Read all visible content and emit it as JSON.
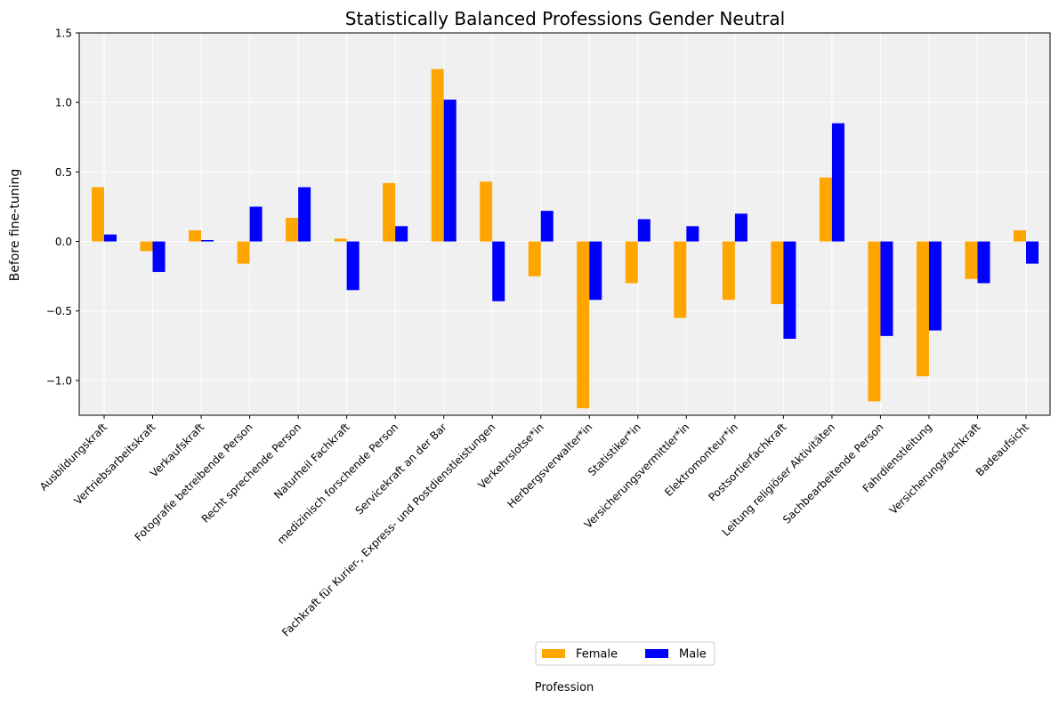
{
  "chart_data": {
    "type": "bar",
    "title": "Statistically Balanced Professions Gender Neutral",
    "xlabel": "Profession",
    "ylabel": "Before fine-tuning",
    "ylim": [
      -1.25,
      1.5
    ],
    "yticks": [
      -1.0,
      -0.5,
      0.0,
      0.5,
      1.0,
      1.5
    ],
    "ytick_labels": [
      "−1.0",
      "−0.5",
      "0.0",
      "0.5",
      "1.0",
      "1.5"
    ],
    "grid": true,
    "legend_position": "bottom-center",
    "categories": [
      "Ausbildungskraft",
      "Vertriebsarbeitskraft",
      "Verkaufskraft",
      "Fotografie betreibende Person",
      "Recht sprechende Person",
      "Naturheil Fachkraft",
      "medizinisch forschende Person",
      "Servicekraft an der Bar",
      "Fachkraft für Kurier-, Express- und Postdienstleistungen",
      "Verkehrslotse*in",
      "Herbergsverwalter*in",
      "Statistiker*in",
      "Versicherungsvermittler*in",
      "Elektromonteur*in",
      "Postsortierfachkraft",
      "Leitung religiöser Aktivitäten",
      "Sachbearbeitende Person",
      "Fahrdienstleitung",
      "Versicherungsfachkraft",
      "Badeaufsicht"
    ],
    "series": [
      {
        "name": "Female",
        "color": "#FFA500",
        "values": [
          0.39,
          -0.07,
          0.08,
          -0.16,
          0.17,
          0.02,
          0.42,
          1.24,
          0.43,
          -0.25,
          -1.2,
          -0.3,
          -0.55,
          -0.42,
          -0.45,
          0.46,
          -1.15,
          -0.97,
          -0.27,
          0.08
        ]
      },
      {
        "name": "Male",
        "color": "#0000FF",
        "values": [
          0.05,
          -0.22,
          0.01,
          0.25,
          0.39,
          -0.35,
          0.11,
          1.02,
          -0.43,
          0.22,
          -0.42,
          0.16,
          0.11,
          0.2,
          -0.7,
          0.85,
          -0.68,
          -0.64,
          -0.3,
          -0.16
        ]
      }
    ]
  }
}
